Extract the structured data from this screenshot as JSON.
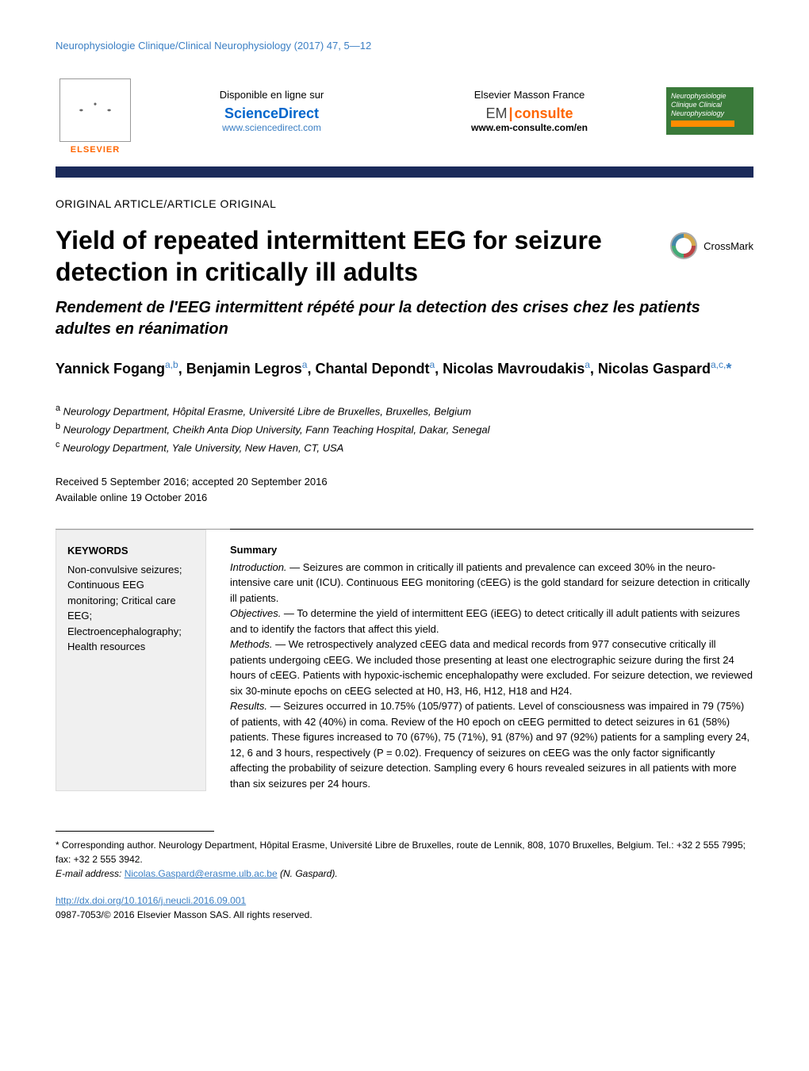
{
  "journal_ref": "Neurophysiologie Clinique/Clinical Neurophysiology (2017) 47, 5—12",
  "header": {
    "elsevier": "ELSEVIER",
    "disponible": "Disponible en ligne sur",
    "sciencedirect": "ScienceDirect",
    "sd_url": "www.sciencedirect.com",
    "publisher": "Elsevier Masson France",
    "em": "EM",
    "consulte": "consulte",
    "em_url": "www.em-consulte.com/en",
    "badge_lines": "Neurophysiologie Clinique Clinical Neurophysiology"
  },
  "article_type": "ORIGINAL ARTICLE/ARTICLE ORIGINAL",
  "title": "Yield of repeated intermittent EEG for seizure detection in critically ill adults",
  "crossmark": "CrossMark",
  "subtitle": "Rendement de l'EEG intermittent répété pour la detection des crises chez les patients adultes en réanimation",
  "authors_html": "Yannick Fogang<sup>a,b</sup>, Benjamin Legros<sup>a</sup>, Chantal Depondt<sup>a</sup>, Nicolas Mavroudakis<sup>a</sup>, Nicolas Gaspard<sup>a,c,</sup><span class='ast'>*</span>",
  "affiliations": [
    {
      "sup": "a",
      "text": "Neurology Department, Hôpital Erasme, Université Libre de Bruxelles, Bruxelles, Belgium"
    },
    {
      "sup": "b",
      "text": "Neurology Department, Cheikh Anta Diop University, Fann Teaching Hospital, Dakar, Senegal"
    },
    {
      "sup": "c",
      "text": "Neurology Department, Yale University, New Haven, CT, USA"
    }
  ],
  "received": "Received 5 September 2016; accepted 20 September 2016",
  "available": "Available online 19 October 2016",
  "keywords_head": "KEYWORDS",
  "keywords": "Non-convulsive seizures; Continuous EEG monitoring; Critical care EEG; Electroencephalography; Health resources",
  "summary_head": "Summary",
  "summary": {
    "intro_label": "Introduction. —",
    "intro": "Seizures are common in critically ill patients and prevalence can exceed 30% in the neuro-intensive care unit (ICU). Continuous EEG monitoring (cEEG) is the gold standard for seizure detection in critically ill patients.",
    "obj_label": "Objectives. —",
    "obj": "To determine the yield of intermittent EEG (iEEG) to detect critically ill adult patients with seizures and to identify the factors that affect this yield.",
    "meth_label": "Methods. —",
    "meth": "We retrospectively analyzed cEEG data and medical records from 977 consecutive critically ill patients undergoing cEEG. We included those presenting at least one electrographic seizure during the first 24 hours of cEEG. Patients with hypoxic-ischemic encephalopathy were excluded. For seizure detection, we reviewed six 30-minute epochs on cEEG selected at H0, H3, H6, H12, H18 and H24.",
    "res_label": "Results. —",
    "res": "Seizures occurred in 10.75% (105/977) of patients. Level of consciousness was impaired in 79 (75%) of patients, with 42 (40%) in coma. Review of the H0 epoch on cEEG permitted to detect seizures in 61 (58%) patients. These figures increased to 70 (67%), 75 (71%), 91 (87%) and 97 (92%) patients for a sampling every 24, 12, 6 and 3 hours, respectively (P = 0.02). Frequency of seizures on cEEG was the only factor significantly affecting the probability of seizure detection. Sampling every 6 hours revealed seizures in all patients with more than six seizures per 24 hours."
  },
  "corresponding": "* Corresponding author. Neurology Department, Hôpital Erasme, Université Libre de Bruxelles, route de Lennik, 808, 1070 Bruxelles, Belgium. Tel.: +32 2 555 7995; fax: +32 2 555 3942.",
  "email_label": "E-mail address:",
  "email": "Nicolas.Gaspard@erasme.ulb.ac.be",
  "email_who": "(N. Gaspard).",
  "doi": "http://dx.doi.org/10.1016/j.neucli.2016.09.001",
  "copyright": "0987-7053/© 2016 Elsevier Masson SAS. All rights reserved.",
  "colors": {
    "link": "#3b7fc4",
    "orange": "#ff6600",
    "navy": "#1a2a5a",
    "badge_green": "#3a7a3a",
    "kw_bg": "#f0f0f0"
  }
}
